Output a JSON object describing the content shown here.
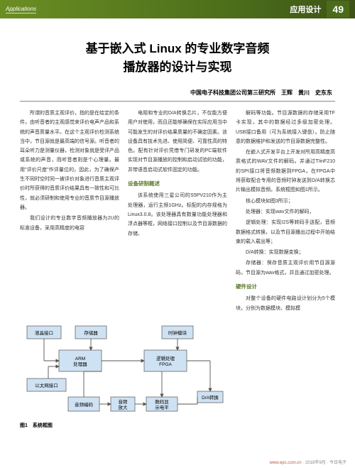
{
  "header": {
    "left_label": "Applications",
    "right_label": "应用设计",
    "page_number": "49"
  },
  "title": "基于嵌入式 Linux 的专业数字音频\n播放器的设计与实现",
  "authors": "中国电子科技集团公司第三研究所　王辉　黄川　史东东",
  "body": {
    "col1": {
      "p1": "所谓的音质主观评价，指的是在给定的条件，由听音者的主观感觉来评价电声产品和系统的声音质量水平。在这个主观评价检测系统当中，节目源就是最高端的信号源。听音者的耳朵听力是测量仪器，检测对象就是受评产品或系统的声音，而听音者则是个心理量。最用\"评价尺度\"作评量位的，因此，为了确保产生不同时空时同一被评价对象进行音质主观评价时所获得的音质评价结果具有一致性和可比性，就必须研制和使用专业的音质节目源播放器。",
      "p2": "我们设计的专业数字音频播放器为2U的标准设备，采用高精度的电容"
    },
    "col2": {
      "p1": "电阻和专业的D/A转换芯片，不仅能方便用户对使用，而且还能够确保在实际应用当中可能发生的对评价结果质量的不确定因素。该设备具有技术先进、使用简便、可靠性高的特色。配有针对评价凭借专门研发的PC端软件实现对节目源播放的控制和启动试验的功能，并带语音启动式软件固定的功能。",
      "h1": "设备研制概述",
      "p2": "该系统使用三星公司的S5PV210作为主处理器，运行主频1GHz。标配的内存规格为Linux3.0.8。该处理器具有数量功能处理器和浮点器等框，网络接口控制以及节目源数据的存储、"
    },
    "col3": {
      "p1": "解码等功能。节目源数据的存储采用TF卡实现，其中的数据经过多级加密处理。USB接口备用（可为系统接入键盘）。防止随意的数据维护和发送的节目源数据完整性。",
      "p2": "在嵌入式开发平台上开发对所用高精度高质格式的WAV文件的解码。并通过TIinF210的SPI接口将音频数据到FPGA，在FPGA中将获取配合专用的音频时钟发送到D/A转换芯片输出模拟音频。系统框图如图1所示。",
      "p3": "核心模块如图3所示；",
      "p4": "处理器：实现wav文件的解码，",
      "p5": "逻辑处理：实现I2S等转码手送配，音频数据格式转换，以及节目源播出过程中开始结束的载入载出等；",
      "p6": "D/A转换：实现数据变换；",
      "p7": "存储器：保存音质主观评价用节目源源码，节目源为wav格式，并且通过加密处理。",
      "h1": "硬件设计",
      "p8": "对整个设备的硬件电路设计划分为5个模块，分别为数据模块、模拟模"
    }
  },
  "diagram": {
    "caption": "图1　系统框图",
    "blocks": {
      "lcd": "液晶接口",
      "storage": "存储器",
      "clock": "时钟模块",
      "processor": "ARM\n处理器",
      "logic": "逻辑处理\nFPGA",
      "eth": "以太网接口",
      "da": "D/A转换",
      "audio_encode": "音频编码",
      "analog_amp": "音频\n放大",
      "meter": "数码显\n示电平"
    },
    "colors": {
      "box_fill": "#cfe2f3",
      "box_stroke": "#666666",
      "line": "#555555",
      "text": "#000000"
    }
  },
  "footer": {
    "url": "www.epc.com.cn",
    "text": "· 2018年9月 · 今日电子"
  }
}
